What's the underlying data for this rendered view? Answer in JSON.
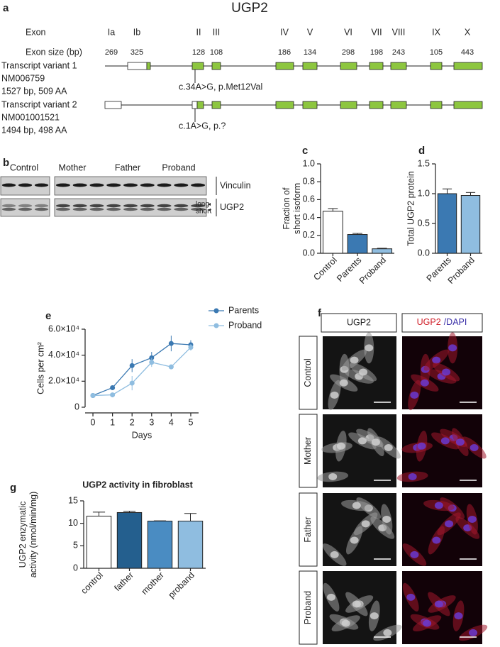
{
  "panel_a": {
    "letter": "a",
    "title": "UGP2",
    "exon_label": "Exon",
    "exons": [
      "Ia",
      "Ib",
      "II",
      "III",
      "IV",
      "V",
      "VI",
      "VII",
      "VIII",
      "IX",
      "X"
    ],
    "size_label": "Exon size (bp)",
    "sizes": [
      "269",
      "325",
      "128",
      "108",
      "186",
      "134",
      "298",
      "198",
      "243",
      "105",
      "443"
    ],
    "variants": [
      {
        "lines": [
          "Transcript variant 1",
          "NM006759",
          "1527 bp, 509 AA"
        ],
        "mutation": "c.34A>G, p.Met12Val"
      },
      {
        "lines": [
          "Transcript variant 2",
          "NM001001521",
          "1494 bp, 498 AA"
        ],
        "mutation": "c.1A>G, p.?"
      }
    ]
  },
  "panel_b": {
    "letter": "b",
    "groups": [
      "Control",
      "Mother",
      "Father",
      "Proband"
    ],
    "proteins": [
      "Vinculin",
      "UGP2"
    ],
    "isoforms": [
      "long",
      "short"
    ]
  },
  "panel_f": {
    "letter": "f",
    "stain_header": "UGP2",
    "merge_header": [
      "UGP2",
      "/DAPI"
    ],
    "rows": [
      "Control",
      "Mother",
      "Father",
      "Proband"
    ]
  },
  "chart_data": [
    {
      "panel": "c",
      "type": "bar",
      "y_label": [
        "Fraction of",
        "short isoform"
      ],
      "categories": [
        "Control",
        "Parents",
        "Proband"
      ],
      "values": [
        0.47,
        0.21,
        0.05
      ],
      "errors": [
        0.03,
        0.012,
        0.006
      ],
      "colors": [
        "#ffffff",
        "#3b79b2",
        "#8fbde0"
      ],
      "ylim": [
        0,
        1.0
      ],
      "yticks": [
        {
          "value": 0,
          "label": "0.0"
        },
        0.2,
        0.4,
        0.6,
        0.8,
        {
          "value": 1,
          "label": "1.0"
        }
      ]
    },
    {
      "panel": "d",
      "type": "bar",
      "y_label": [
        "Total UGP2 protein"
      ],
      "categories": [
        "Parents",
        "Proband"
      ],
      "values": [
        1.0,
        0.97
      ],
      "errors": [
        0.08,
        0.05
      ],
      "colors": [
        "#3b79b2",
        "#8fbde0"
      ],
      "ylim": [
        0,
        1.5
      ],
      "yticks": [
        {
          "value": 0,
          "label": "0.0"
        },
        0.5,
        {
          "value": 1,
          "label": "1.0"
        },
        1.5
      ]
    },
    {
      "panel": "e",
      "type": "line",
      "y_label": [
        "Cells per cm²"
      ],
      "x_label": "Days",
      "x": [
        0,
        1,
        2,
        3,
        4,
        5
      ],
      "xlim": [
        -0.4,
        5.4
      ],
      "xticks": [
        0,
        1,
        2,
        3,
        4,
        5
      ],
      "ylim": [
        0,
        60000
      ],
      "yticks": [
        0,
        {
          "value": 20000,
          "label": "2.0×10⁴"
        },
        {
          "value": 40000,
          "label": "4.0×10⁴"
        },
        {
          "value": 60000,
          "label": "6.0×10⁴"
        }
      ],
      "series": [
        {
          "name": "Parents",
          "color": "#3b79b2",
          "values": [
            9000,
            15000,
            32000,
            38000,
            49000,
            48000
          ],
          "errors": [
            0,
            1500,
            5000,
            4500,
            6000,
            3500
          ]
        },
        {
          "name": "Proband",
          "color": "#8fbde0",
          "values": [
            9000,
            9500,
            18500,
            34500,
            31000,
            46000
          ],
          "errors": [
            0,
            0,
            5500,
            3500,
            0,
            2500
          ]
        }
      ]
    },
    {
      "panel": "g",
      "type": "bar",
      "title": "UGP2 activity in fibroblast",
      "y_label": [
        "UGP2 enzymatic",
        "activity (nmol/min/mg)"
      ],
      "categories": [
        "control",
        "father",
        "mother",
        "proband"
      ],
      "values": [
        11.6,
        12.4,
        10.5,
        10.5
      ],
      "errors": [
        0.9,
        0.3,
        0.05,
        1.7
      ],
      "colors": [
        "#ffffff",
        "#245f8e",
        "#4a8cc2",
        "#8fbde0"
      ],
      "ylim": [
        0,
        15
      ],
      "yticks": [
        0,
        5,
        10,
        15
      ]
    }
  ]
}
